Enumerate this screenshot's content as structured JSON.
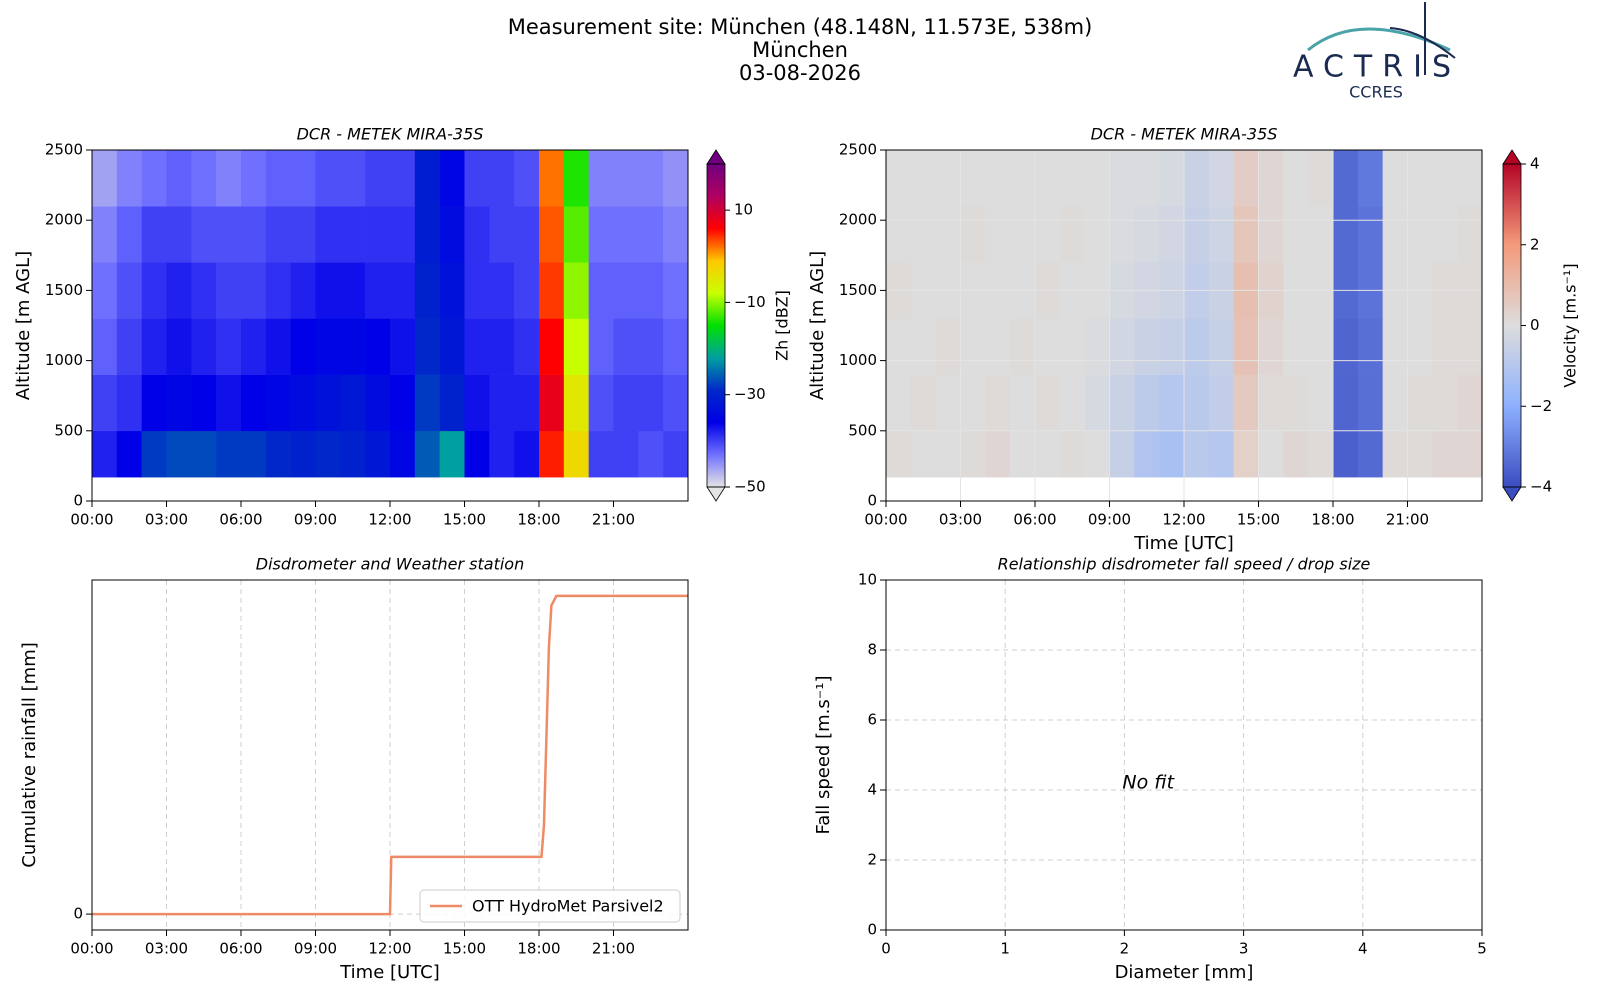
{
  "header": {
    "title_lines": [
      "Measurement site: München (48.148N, 11.573E, 538m)",
      "München",
      "03-08-2026"
    ],
    "logo": {
      "name": "ACTRIS",
      "subtitle": "CCRES"
    }
  },
  "chart_data": [
    {
      "type": "heatmap",
      "title": "DCR - METEK MIRA-35S",
      "ylabel": "Altitude [m AGL]",
      "grid": false,
      "xlim": [
        0,
        24
      ],
      "xticks": [
        {
          "value": 0,
          "label": "00:00"
        },
        {
          "value": 3,
          "label": "03:00"
        },
        {
          "value": 6,
          "label": "06:00"
        },
        {
          "value": 9,
          "label": "09:00"
        },
        {
          "value": 12,
          "label": "12:00"
        },
        {
          "value": 15,
          "label": "15:00"
        },
        {
          "value": 18,
          "label": "18:00"
        },
        {
          "value": 21,
          "label": "21:00"
        }
      ],
      "ylim": [
        0,
        2500
      ],
      "yticks": [
        0,
        500,
        1000,
        1500,
        2000,
        2500
      ],
      "x_edges": [
        0,
        1,
        2,
        3,
        4,
        5,
        6,
        7,
        8,
        9,
        10,
        11,
        12,
        13,
        14,
        15,
        16,
        17,
        18,
        19,
        20,
        21,
        22,
        23,
        24
      ],
      "y_edges": [
        170,
        500,
        900,
        1300,
        1700,
        2100,
        2500
      ],
      "z": [
        [
          -38,
          -36,
          -28,
          -27,
          -27,
          -28,
          -28,
          -29,
          -30,
          -29,
          -30,
          -32,
          -35,
          -26,
          -22,
          -36,
          -38,
          -37,
          5,
          -3,
          -40,
          -40,
          -41,
          -40
        ],
        [
          -40,
          -39,
          -36,
          -35,
          -36,
          -37,
          -36,
          -35,
          -34,
          -33,
          -32,
          -34,
          -36,
          -28,
          -30,
          -37,
          -38,
          -38,
          8,
          -5,
          -41,
          -40,
          -40,
          -41
        ],
        [
          -42,
          -40,
          -38,
          -37,
          -38,
          -39,
          -38,
          -37,
          -36,
          -35,
          -35,
          -36,
          -37,
          -29,
          -32,
          -38,
          -38,
          -39,
          6,
          -8,
          -42,
          -41,
          -41,
          -42
        ],
        [
          -43,
          -41,
          -39,
          -38,
          -39,
          -40,
          -40,
          -39,
          -38,
          -37,
          -37,
          -38,
          -38,
          -30,
          -33,
          -39,
          -39,
          -40,
          4,
          -10,
          -42,
          -42,
          -42,
          -43
        ],
        [
          -44,
          -42,
          -40,
          -40,
          -41,
          -41,
          -41,
          -40,
          -40,
          -39,
          -39,
          -39,
          -39,
          -31,
          -34,
          -39,
          -40,
          -40,
          3,
          -12,
          -43,
          -43,
          -43,
          -44
        ],
        [
          -46,
          -44,
          -43,
          -42,
          -43,
          -44,
          -43,
          -42,
          -42,
          -41,
          -41,
          -40,
          -40,
          -31,
          -35,
          -40,
          -40,
          -41,
          2,
          -14,
          -44,
          -44,
          -44,
          -45
        ]
      ],
      "colorbar": {
        "label": "Zh [dBZ]",
        "lim": [
          -50,
          20
        ],
        "ticks": [
          {
            "value": -50,
            "label": "−50"
          },
          {
            "value": -30,
            "label": "−30"
          },
          {
            "value": -10,
            "label": "−10"
          },
          10
        ],
        "colors": [
          "#e4e4e4",
          "#7070ff",
          "#0000e8",
          "#0028c8",
          "#00a0a0",
          "#00e000",
          "#c8ff00",
          "#ffc800",
          "#ff0000",
          "#b00060",
          "#700080"
        ]
      }
    },
    {
      "type": "heatmap",
      "title": "DCR - METEK MIRA-35S",
      "xlabel": "Time [UTC]",
      "ylabel": "Altitude [m AGL]",
      "grid": true,
      "xlim": [
        0,
        24
      ],
      "xticks": [
        {
          "value": 0,
          "label": "00:00"
        },
        {
          "value": 3,
          "label": "03:00"
        },
        {
          "value": 6,
          "label": "06:00"
        },
        {
          "value": 9,
          "label": "09:00"
        },
        {
          "value": 12,
          "label": "12:00"
        },
        {
          "value": 15,
          "label": "15:00"
        },
        {
          "value": 18,
          "label": "18:00"
        },
        {
          "value": 21,
          "label": "21:00"
        }
      ],
      "ylim": [
        0,
        2500
      ],
      "yticks": [
        0,
        500,
        1000,
        1500,
        2000,
        2500
      ],
      "x_edges": [
        0,
        1,
        2,
        3,
        4,
        5,
        6,
        7,
        8,
        9,
        10,
        11,
        12,
        13,
        14,
        15,
        16,
        17,
        18,
        19,
        20,
        21,
        22,
        23,
        24
      ],
      "y_edges": [
        170,
        500,
        900,
        1300,
        1700,
        2100,
        2500
      ],
      "z": [
        [
          0.1,
          0,
          0,
          0.1,
          0.2,
          0,
          0,
          0.1,
          0,
          -0.6,
          -1.1,
          -1.3,
          -0.9,
          -1,
          0.4,
          0,
          0.2,
          0.1,
          -3.6,
          -3.4,
          0.1,
          0.1,
          0.2,
          0.2
        ],
        [
          0,
          0.1,
          0,
          0,
          0.1,
          0,
          0.1,
          0,
          -0.2,
          -0.5,
          -0.8,
          -1,
          -0.9,
          -0.7,
          0.6,
          0.1,
          0.1,
          0,
          -3.5,
          -3.3,
          0,
          0.1,
          0.1,
          0.2
        ],
        [
          0,
          0,
          0.1,
          0,
          0,
          0.1,
          0,
          0,
          -0.1,
          -0.3,
          -0.5,
          -0.6,
          -0.8,
          -0.6,
          0.8,
          0.2,
          0,
          0,
          -3.5,
          -3.3,
          0,
          0,
          0.1,
          0.1
        ],
        [
          0.1,
          0,
          0,
          0,
          0,
          0,
          0.1,
          0,
          0,
          -0.2,
          -0.3,
          -0.4,
          -0.7,
          -0.5,
          0.9,
          0.3,
          0,
          0,
          -3.4,
          -3.2,
          0,
          0,
          0.1,
          0.1
        ],
        [
          0,
          0,
          0,
          0.1,
          0,
          0,
          0,
          0.1,
          0,
          -0.1,
          -0.2,
          -0.3,
          -0.6,
          -0.4,
          0.7,
          0.2,
          0,
          0,
          -3.4,
          -3.2,
          0,
          0,
          0,
          0.1
        ],
        [
          0,
          0,
          0,
          0,
          0,
          0,
          0,
          0,
          0,
          -0.1,
          -0.1,
          -0.2,
          -0.5,
          -0.3,
          0.5,
          0.2,
          0,
          0.1,
          -3.4,
          -3.1,
          0,
          0,
          0,
          0
        ]
      ],
      "colorbar": {
        "label": "Velocity [m.s⁻¹]",
        "lim": [
          -4,
          4
        ],
        "ticks": [
          {
            "value": -4,
            "label": "−4"
          },
          {
            "value": -2,
            "label": "−2"
          },
          0,
          2,
          4
        ],
        "colors": [
          "#3b4cc0",
          "#8db0fe",
          "#dddddd",
          "#f49a7b",
          "#b40426"
        ]
      }
    },
    {
      "type": "line",
      "title": "Disdrometer and Weather station",
      "xlabel": "Time [UTC]",
      "ylabel": "Cumulative rainfall [mm]",
      "grid": true,
      "legend": "lower right",
      "xlim": [
        0,
        24
      ],
      "xticks": [
        {
          "value": 0,
          "label": "00:00"
        },
        {
          "value": 3,
          "label": "03:00"
        },
        {
          "value": 6,
          "label": "06:00"
        },
        {
          "value": 9,
          "label": "09:00"
        },
        {
          "value": 12,
          "label": "12:00"
        },
        {
          "value": 15,
          "label": "15:00"
        },
        {
          "value": 18,
          "label": "18:00"
        },
        {
          "value": 21,
          "label": "21:00"
        }
      ],
      "ylim": [
        -0.25,
        5.25
      ],
      "yticks": [
        0
      ],
      "series": [
        {
          "name": "OTT HydroMet Parsivel2",
          "color": "#ee8a66",
          "x": [
            0,
            12.0,
            12.05,
            18.1,
            18.2,
            18.3,
            18.4,
            18.5,
            18.7,
            24
          ],
          "values": [
            0,
            0,
            0.9,
            0.9,
            1.4,
            2.8,
            4.2,
            4.85,
            5,
            5
          ]
        }
      ]
    },
    {
      "type": "scatter",
      "title": "Relationship disdrometer fall speed / drop size",
      "xlabel": "Diameter [mm]",
      "ylabel": "Fall speed [m.s⁻¹]",
      "grid": true,
      "annotation": "No fit",
      "xlim": [
        0,
        5
      ],
      "xticks": [
        0,
        1,
        2,
        3,
        4,
        5
      ],
      "ylim": [
        0,
        10
      ],
      "yticks": [
        0,
        2,
        4,
        6,
        8,
        10
      ]
    }
  ]
}
